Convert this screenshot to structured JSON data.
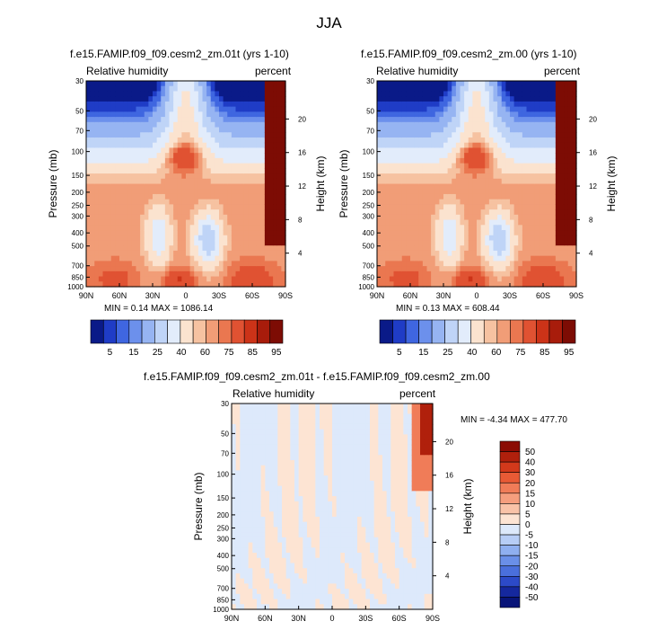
{
  "page": {
    "suptitle": "JJA"
  },
  "chart_data": [
    {
      "type": "heatmap",
      "title": "f.e15.FAMIP.f09_f09.cesm2_zm.01t (yrs 1-10)",
      "left_label": "Relative humidity",
      "right_label": "percent",
      "ylabel": "Pressure (mb)",
      "y2label": "Height (km)",
      "x_ticks": [
        "90N",
        "60N",
        "30N",
        "0",
        "30S",
        "60S",
        "90S"
      ],
      "y_ticks": [
        "30",
        "50",
        "70",
        "100",
        "150",
        "200",
        "250",
        "300",
        "400",
        "500",
        "700",
        "850",
        "1000"
      ],
      "y2_ticks": [
        "20",
        "16",
        "12",
        "8",
        "4"
      ],
      "ylim": [
        1000,
        30
      ],
      "y_scale": "log",
      "stats": "MIN =  0.14  MAX = 1086.14",
      "colorbar": {
        "orientation": "horizontal",
        "labels": [
          "5",
          "15",
          "25",
          "40",
          "60",
          "75",
          "85",
          "95"
        ],
        "colors": [
          "#0a1a88",
          "#1f3cc6",
          "#3f66e0",
          "#6c90ec",
          "#96b4f2",
          "#bfd4f7",
          "#e2ecfb",
          "#fbe3cf",
          "#f6c2a1",
          "#f19d77",
          "#ea7750",
          "#e05232",
          "#cc3318",
          "#a81c0b",
          "#7d0c04"
        ]
      }
    },
    {
      "type": "heatmap",
      "title": "f.e15.FAMIP.f09_f09.cesm2_zm.00 (yrs 1-10)",
      "left_label": "Relative humidity",
      "right_label": "percent",
      "ylabel": "Pressure (mb)",
      "y2label": "Height (km)",
      "x_ticks": [
        "90N",
        "60N",
        "30N",
        "0",
        "30S",
        "60S",
        "90S"
      ],
      "y_ticks": [
        "30",
        "50",
        "70",
        "100",
        "150",
        "200",
        "250",
        "300",
        "400",
        "500",
        "700",
        "850",
        "1000"
      ],
      "y2_ticks": [
        "20",
        "16",
        "12",
        "8",
        "4"
      ],
      "ylim": [
        1000,
        30
      ],
      "y_scale": "log",
      "stats": "MIN =  0.13  MAX = 608.44",
      "colorbar": {
        "orientation": "horizontal",
        "labels": [
          "5",
          "15",
          "25",
          "40",
          "60",
          "75",
          "85",
          "95"
        ],
        "colors": [
          "#0a1a88",
          "#1f3cc6",
          "#3f66e0",
          "#6c90ec",
          "#96b4f2",
          "#bfd4f7",
          "#e2ecfb",
          "#fbe3cf",
          "#f6c2a1",
          "#f19d77",
          "#ea7750",
          "#e05232",
          "#cc3318",
          "#a81c0b",
          "#7d0c04"
        ]
      }
    },
    {
      "type": "heatmap",
      "title": "f.e15.FAMIP.f09_f09.cesm2_zm.01t - f.e15.FAMIP.f09_f09.cesm2_zm.00",
      "left_label": "Relative humidity",
      "right_label": "percent",
      "ylabel": "Pressure (mb)",
      "y2label": "Height (km)",
      "x_ticks": [
        "90N",
        "60N",
        "30N",
        "0",
        "30S",
        "60S",
        "90S"
      ],
      "y_ticks": [
        "30",
        "50",
        "70",
        "100",
        "150",
        "200",
        "250",
        "300",
        "400",
        "500",
        "700",
        "850",
        "1000"
      ],
      "y2_ticks": [
        "20",
        "16",
        "12",
        "8",
        "4"
      ],
      "ylim": [
        1000,
        30
      ],
      "y_scale": "log",
      "stats": "MIN = -4.34  MAX = 477.70",
      "colorbar": {
        "orientation": "vertical",
        "labels": [
          "50",
          "40",
          "30",
          "20",
          "15",
          "10",
          "5",
          "0",
          "-5",
          "-10",
          "-15",
          "-20",
          "-30",
          "-40",
          "-50"
        ],
        "colors": [
          "#8b0c04",
          "#b0200c",
          "#d2391b",
          "#e85a35",
          "#f07c58",
          "#f59e7e",
          "#f9c3a8",
          "#fde4d3",
          "#dde9fb",
          "#b7cdf6",
          "#8faff0",
          "#6a8fe8",
          "#4a6fdc",
          "#2c4ac8",
          "#15289e",
          "#081478"
        ]
      }
    }
  ]
}
